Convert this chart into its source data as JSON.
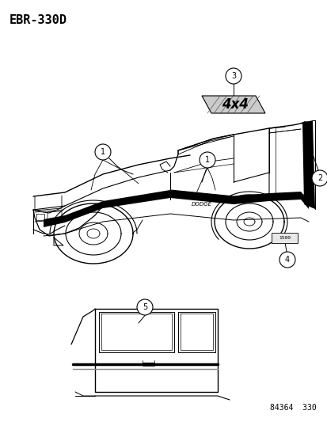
{
  "title": "EBR-330D",
  "footer": "84364  330",
  "background_color": "#ffffff",
  "line_color": "#000000",
  "fig_width": 4.14,
  "fig_height": 5.33,
  "dpi": 100
}
